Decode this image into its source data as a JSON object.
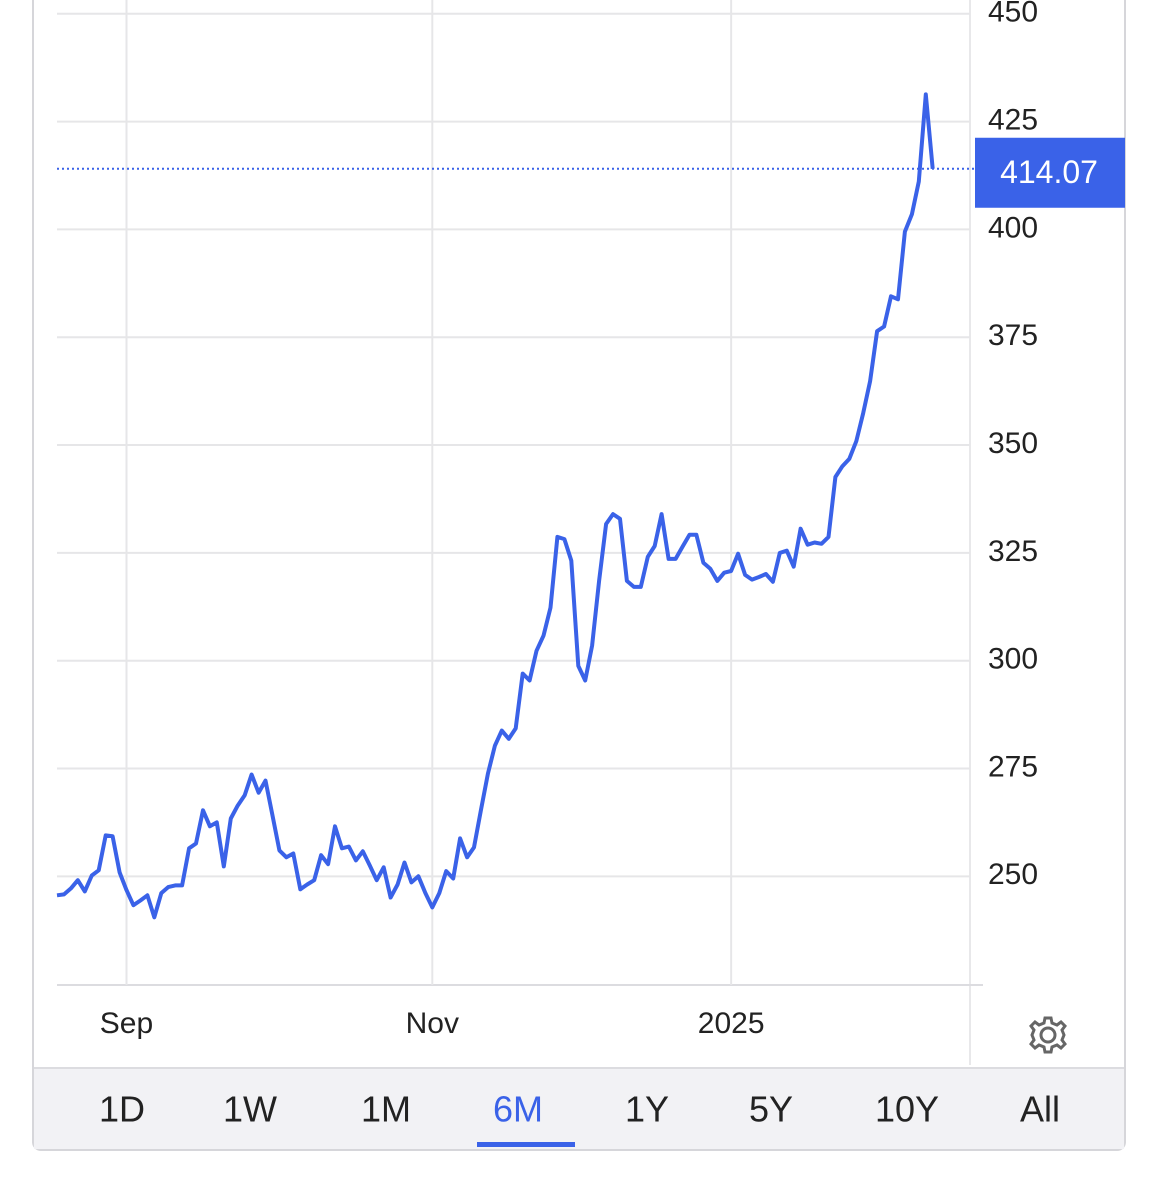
{
  "chart_data": {
    "type": "line",
    "categories": [
      null,
      null,
      null,
      null,
      null,
      null,
      null,
      null,
      null,
      null,
      "Sep",
      null,
      null,
      null,
      null,
      null,
      null,
      null,
      null,
      null,
      null,
      null,
      null,
      null,
      null,
      null,
      null,
      null,
      null,
      null,
      null,
      null,
      null,
      null,
      null,
      null,
      null,
      null,
      null,
      null,
      null,
      null,
      null,
      null,
      null,
      null,
      null,
      null,
      null,
      null,
      null,
      null,
      null,
      null,
      "Nov",
      null,
      null,
      null,
      null,
      null,
      null,
      null,
      null,
      null,
      null,
      null,
      null,
      null,
      null,
      null,
      null,
      null,
      null,
      null,
      null,
      null,
      null,
      null,
      null,
      null,
      null,
      null,
      null,
      null,
      null,
      null,
      null,
      null,
      null,
      null,
      null,
      null,
      null,
      null,
      null,
      null,
      null,
      "2025",
      null,
      null,
      null,
      null,
      null,
      null,
      null,
      null,
      null,
      null,
      null,
      null,
      null,
      null,
      null,
      null,
      null,
      null,
      null,
      null,
      null,
      null,
      null,
      null,
      null,
      null,
      null,
      null,
      null
    ],
    "values": [
      245.6,
      245.8,
      247.2,
      249.1,
      246.5,
      250.2,
      251.4,
      259.5,
      259.3,
      250.9,
      246.8,
      243.3,
      244.4,
      245.6,
      240.5,
      246.1,
      247.5,
      247.9,
      247.9,
      256.5,
      257.6,
      265.3,
      261.6,
      262.5,
      252.3,
      263.4,
      266.4,
      268.8,
      273.6,
      269.4,
      272.2,
      264.1,
      256.0,
      254.4,
      255.3,
      247.0,
      248.1,
      249.1,
      254.9,
      252.8,
      261.6,
      256.5,
      256.9,
      253.7,
      255.8,
      252.5,
      249.1,
      252.1,
      245.1,
      248.1,
      253.2,
      248.6,
      250.0,
      246.1,
      242.8,
      246.1,
      251.2,
      249.5,
      258.8,
      254.4,
      256.7,
      265.3,
      273.8,
      280.3,
      283.8,
      281.9,
      284.3,
      297.0,
      295.4,
      302.3,
      305.8,
      312.3,
      328.7,
      328.2,
      323.2,
      298.8,
      295.4,
      303.5,
      318.5,
      331.7,
      334.0,
      332.9,
      318.5,
      317.1,
      317.1,
      324.1,
      326.6,
      334.0,
      323.6,
      323.6,
      326.4,
      329.2,
      329.2,
      322.7,
      321.3,
      318.5,
      320.4,
      320.8,
      324.8,
      319.9,
      318.8,
      319.4,
      320.1,
      318.3,
      325.0,
      325.5,
      321.8,
      330.6,
      326.9,
      327.4,
      327.1,
      328.7,
      342.6,
      345.1,
      346.8,
      350.9,
      357.4,
      364.8,
      376.4,
      377.5,
      384.5,
      383.8,
      399.5,
      403.5,
      411.1,
      431.3,
      414.07
    ],
    "color": "#3a62e8",
    "ylim": [
      224.8,
      453.2
    ],
    "yticks": [
      250,
      275,
      300,
      325,
      350,
      375,
      400,
      425,
      450
    ],
    "grid": true
  },
  "controls": {
    "ranges": [
      "1D",
      "1W",
      "1M",
      "6M",
      "1Y",
      "5Y",
      "10Y",
      "All"
    ],
    "selected": "6M"
  }
}
